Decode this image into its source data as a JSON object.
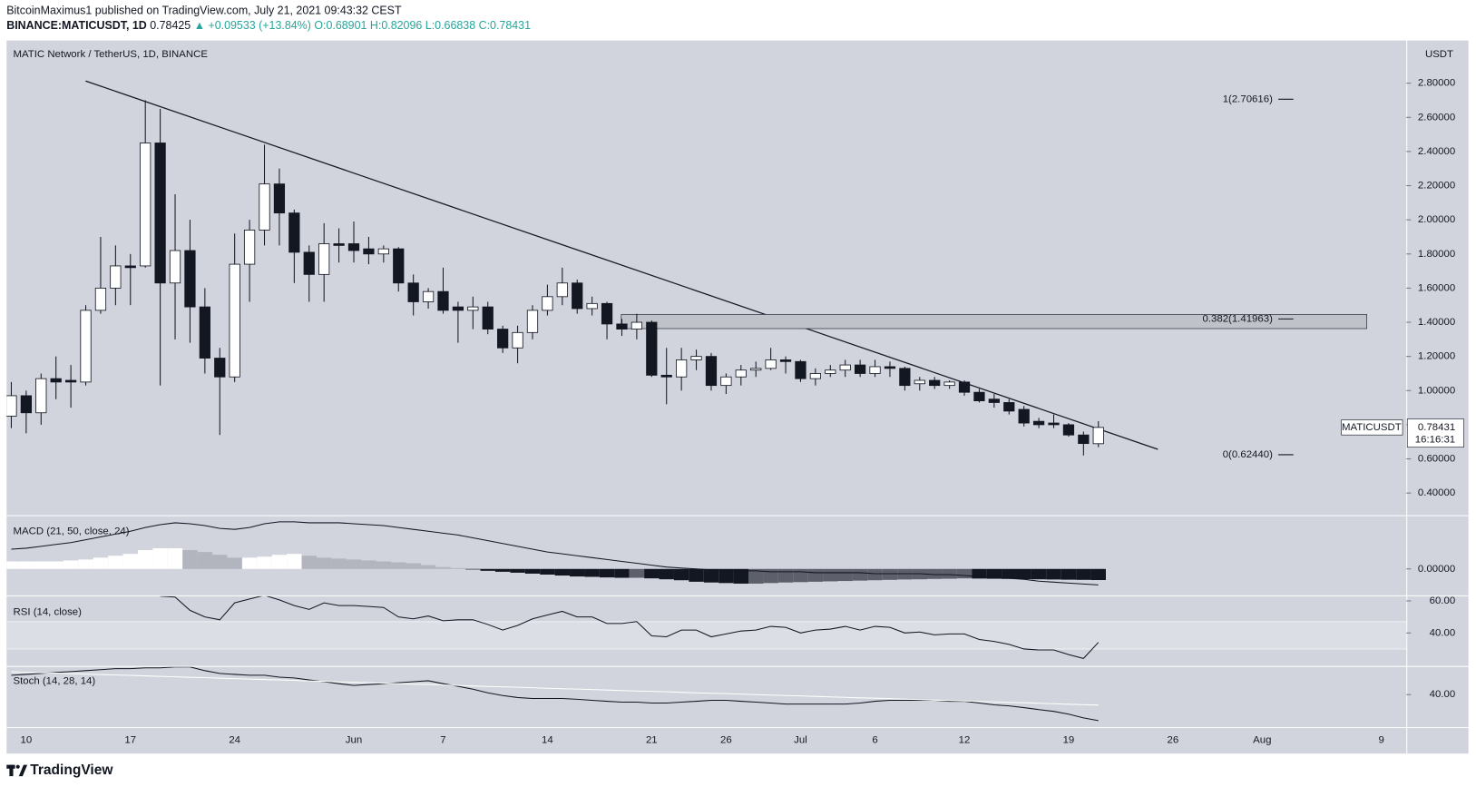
{
  "header": {
    "author_line": "BitcoinMaximus1 published on TradingView.com, July 21, 2021 09:43:32 CEST",
    "symbol": "BINANCE:MATICUSDT, 1D",
    "last": "0.78425",
    "change": "▲ +0.09533 (+13.84%)",
    "open": "O:0.68901",
    "high": "H:0.82096",
    "low": "L:0.66838",
    "close": "C:0.78431"
  },
  "chart_data": [
    {
      "type": "candlestick",
      "title": "MATIC Network / TetherUS, 1D, BINANCE",
      "y_axis_label": "USDT",
      "categories": [
        null,
        "10",
        null,
        null,
        null,
        null,
        null,
        null,
        "17",
        null,
        null,
        null,
        null,
        null,
        null,
        "24",
        null,
        null,
        null,
        null,
        null,
        null,
        null,
        "Jun",
        null,
        null,
        null,
        null,
        null,
        "7",
        null,
        null,
        null,
        null,
        null,
        null,
        "14",
        null,
        null,
        null,
        null,
        null,
        null,
        "21",
        null,
        null,
        null,
        null,
        "26",
        null,
        null,
        null,
        null,
        "Jul",
        null,
        null,
        null,
        null,
        "6",
        null,
        null,
        null,
        null,
        null,
        "12",
        null,
        null,
        null,
        null,
        null,
        null,
        "19",
        null,
        null,
        null,
        null,
        null,
        null,
        "26",
        null,
        null,
        null,
        null,
        null,
        "Aug",
        null,
        null,
        null,
        null,
        null,
        null,
        null,
        "9"
      ],
      "open": [
        0.85,
        0.97,
        0.87,
        1.07,
        1.06,
        1.05,
        1.47,
        1.6,
        1.73,
        1.73,
        2.45,
        1.63,
        1.82,
        1.49,
        1.19,
        1.08,
        1.74,
        1.94,
        2.21,
        2.04,
        1.81,
        1.68,
        1.86,
        1.86,
        1.83,
        1.8,
        1.83,
        1.63,
        1.52,
        1.58,
        1.49,
        1.47,
        1.49,
        1.36,
        1.25,
        1.34,
        1.47,
        1.55,
        1.63,
        1.48,
        1.51,
        1.39,
        1.36,
        1.4,
        1.09,
        1.08,
        1.18,
        1.2,
        1.03,
        1.08,
        1.12,
        1.13,
        1.18,
        1.17,
        1.07,
        1.1,
        1.12,
        1.15,
        1.1,
        1.14,
        1.13,
        1.04,
        1.06,
        1.03,
        1.05,
        0.99,
        0.95,
        0.93,
        0.89,
        0.82,
        0.81,
        0.8,
        0.74,
        0.68901,
        null,
        null,
        null,
        null,
        null,
        null,
        null,
        null,
        null,
        null,
        null,
        null,
        null,
        null,
        null,
        null,
        null,
        null,
        null
      ],
      "high": [
        1.05,
        1.0,
        1.1,
        1.2,
        1.15,
        1.5,
        1.9,
        1.85,
        1.8,
        2.7,
        2.65,
        2.15,
        2.0,
        1.6,
        1.25,
        1.92,
        2.0,
        2.44,
        2.3,
        2.06,
        1.85,
        1.98,
        1.95,
        1.99,
        1.9,
        1.85,
        1.84,
        1.68,
        1.6,
        1.72,
        1.52,
        1.55,
        1.52,
        1.38,
        1.38,
        1.5,
        1.62,
        1.72,
        1.65,
        1.55,
        1.52,
        1.42,
        1.45,
        1.41,
        1.25,
        1.25,
        1.24,
        1.22,
        1.1,
        1.15,
        1.17,
        1.25,
        1.2,
        1.18,
        1.13,
        1.15,
        1.18,
        1.18,
        1.18,
        1.17,
        1.14,
        1.08,
        1.08,
        1.06,
        1.06,
        1.01,
        0.98,
        0.95,
        0.91,
        0.84,
        0.86,
        0.81,
        0.76,
        0.82096,
        null,
        null,
        null,
        null,
        null,
        null,
        null,
        null,
        null,
        null,
        null,
        null,
        null,
        null,
        null,
        null,
        null,
        null,
        null
      ],
      "low": [
        0.78,
        0.75,
        0.8,
        0.95,
        0.9,
        1.03,
        1.45,
        1.5,
        1.5,
        1.72,
        1.03,
        1.3,
        1.28,
        1.1,
        0.74,
        1.05,
        1.52,
        1.85,
        1.85,
        1.63,
        1.52,
        1.52,
        1.75,
        1.75,
        1.74,
        1.75,
        1.58,
        1.44,
        1.48,
        1.45,
        1.28,
        1.36,
        1.33,
        1.22,
        1.16,
        1.3,
        1.44,
        1.5,
        1.45,
        1.44,
        1.3,
        1.32,
        1.3,
        1.08,
        0.92,
        1.0,
        1.12,
        1.0,
        0.98,
        1.03,
        1.08,
        1.12,
        1.1,
        1.05,
        1.03,
        1.08,
        1.08,
        1.08,
        1.08,
        1.08,
        1.0,
        1.0,
        1.01,
        1.01,
        0.97,
        0.93,
        0.9,
        0.86,
        0.79,
        0.78,
        0.78,
        0.73,
        0.62,
        0.66838,
        null,
        null,
        null,
        null,
        null,
        null,
        null,
        null,
        null,
        null,
        null,
        null,
        null,
        null,
        null,
        null,
        null,
        null,
        null
      ],
      "close": [
        0.97,
        0.87,
        1.07,
        1.05,
        1.05,
        1.47,
        1.6,
        1.73,
        1.72,
        2.45,
        1.63,
        1.82,
        1.49,
        1.19,
        1.08,
        1.74,
        1.94,
        2.21,
        2.04,
        1.81,
        1.68,
        1.86,
        1.85,
        1.82,
        1.8,
        1.83,
        1.63,
        1.52,
        1.58,
        1.47,
        1.47,
        1.49,
        1.36,
        1.25,
        1.34,
        1.47,
        1.55,
        1.63,
        1.48,
        1.51,
        1.39,
        1.36,
        1.4,
        1.09,
        1.08,
        1.18,
        1.2,
        1.03,
        1.08,
        1.12,
        1.13,
        1.18,
        1.17,
        1.07,
        1.1,
        1.12,
        1.15,
        1.1,
        1.14,
        1.13,
        1.03,
        1.06,
        1.03,
        1.05,
        0.99,
        0.94,
        0.93,
        0.88,
        0.81,
        0.8,
        0.8,
        0.74,
        0.69,
        0.78431,
        null,
        null,
        null,
        null,
        null,
        null,
        null,
        null,
        null,
        null,
        null,
        null,
        null,
        null,
        null,
        null,
        null,
        null,
        null
      ],
      "up_color": "#ffffff",
      "down_color": "#131722",
      "ylim": [
        0.27,
        3.05
      ],
      "yticks": [
        {
          "value": 0.4,
          "label": "0.40000"
        },
        {
          "value": 0.6,
          "label": "0.60000"
        },
        {
          "value": 0.8,
          "label": "0.80000"
        },
        {
          "value": 1.0,
          "label": "1.00000"
        },
        {
          "value": 1.2,
          "label": "1.20000"
        },
        {
          "value": 1.4,
          "label": "1.40000"
        },
        {
          "value": 1.6,
          "label": "1.60000"
        },
        {
          "value": 1.8,
          "label": "1.80000"
        },
        {
          "value": 2.0,
          "label": "2.00000"
        },
        {
          "value": 2.2,
          "label": "2.20000"
        },
        {
          "value": 2.4,
          "label": "2.40000"
        },
        {
          "value": 2.6,
          "label": "2.60000"
        },
        {
          "value": 2.8,
          "label": "2.80000"
        }
      ],
      "fib_levels": [
        {
          "value": 2.70616,
          "label": "1(2.70616)"
        },
        {
          "value": 1.41963,
          "label": "0.382(1.41963)"
        },
        {
          "value": 0.6244,
          "label": "0(0.62440)"
        }
      ],
      "resistance_zone": [
        1.363,
        1.446
      ],
      "last_price": {
        "symbol": "MATICUSDT",
        "countdown": "16:16:31"
      }
    },
    {
      "type": "macd",
      "title": "MACD (21, 50, close, 24)",
      "ylim": [
        -0.14,
        0.28
      ],
      "yticks": [
        {
          "value": 0,
          "label": "0.00000"
        }
      ],
      "histogram": [
        0.04,
        0.04,
        0.04,
        0.04,
        0.045,
        0.05,
        0.06,
        0.07,
        0.08,
        0.1,
        0.11,
        0.11,
        0.1,
        0.09,
        0.075,
        0.06,
        0.06,
        0.065,
        0.075,
        0.08,
        0.07,
        0.06,
        0.055,
        0.05,
        0.045,
        0.04,
        0.035,
        0.03,
        0.02,
        0.01,
        0.005,
        -0.003,
        -0.01,
        -0.015,
        -0.02,
        -0.025,
        -0.03,
        -0.035,
        -0.04,
        -0.042,
        -0.045,
        -0.047,
        -0.047,
        -0.05,
        -0.055,
        -0.06,
        -0.068,
        -0.072,
        -0.075,
        -0.078,
        -0.078,
        -0.075,
        -0.072,
        -0.07,
        -0.068,
        -0.066,
        -0.064,
        -0.062,
        -0.06,
        -0.058,
        -0.056,
        -0.055,
        -0.053,
        -0.052,
        -0.05,
        -0.051,
        -0.052,
        -0.053,
        -0.054,
        -0.055,
        -0.056,
        -0.057,
        -0.058,
        -0.059
      ],
      "macd": [
        0.105,
        0.11,
        0.12,
        0.13,
        0.14,
        0.155,
        0.17,
        0.185,
        0.2,
        0.22,
        0.235,
        0.245,
        0.24,
        0.23,
        0.215,
        0.21,
        0.22,
        0.24,
        0.25,
        0.25,
        0.245,
        0.245,
        0.245,
        0.24,
        0.235,
        0.23,
        0.22,
        0.21,
        0.2,
        0.19,
        0.18,
        0.165,
        0.15,
        0.135,
        0.12,
        0.105,
        0.09,
        0.08,
        0.07,
        0.06,
        0.05,
        0.04,
        0.03,
        0.02,
        0.01,
        0.005,
        0,
        -0.005,
        -0.01,
        -0.01,
        -0.01,
        -0.015,
        -0.015,
        -0.015,
        -0.02,
        -0.02,
        -0.02,
        -0.02,
        -0.025,
        -0.025,
        -0.025,
        -0.025,
        -0.03,
        -0.03,
        -0.035,
        -0.04,
        -0.045,
        -0.05,
        -0.055,
        -0.065,
        -0.07,
        -0.075,
        -0.08,
        -0.085
      ],
      "line_color": "#131722",
      "histogram_colors": {
        "rising_above": "#ffffff",
        "falling_above": "#b2b5be",
        "rising_below": "#5d606b",
        "falling_below": "#131722"
      }
    },
    {
      "type": "rsi",
      "title": "RSI (14, close)",
      "ylim": [
        19.4,
        62.9
      ],
      "yticks": [
        {
          "value": 60,
          "label": "60.00"
        },
        {
          "value": 40,
          "label": "40.00"
        }
      ],
      "values": [
        null,
        null,
        null,
        null,
        null,
        null,
        null,
        null,
        null,
        null,
        63,
        62.4,
        54.1,
        50,
        48.2,
        58.8,
        61.2,
        63.5,
        60.6,
        57.1,
        54.7,
        58.8,
        57.1,
        57.1,
        56.5,
        55.9,
        50,
        48.8,
        50.6,
        47.6,
        48.2,
        48.2,
        45.3,
        41.8,
        44.7,
        48.8,
        51.2,
        53.5,
        50,
        50,
        45.9,
        45.9,
        47.1,
        38.2,
        37.6,
        41.8,
        41.8,
        37.6,
        39.4,
        41.2,
        41.8,
        44.1,
        43.5,
        40,
        41.8,
        42.4,
        44.1,
        41.8,
        44.1,
        43.5,
        40,
        40.6,
        38.8,
        39.4,
        39.4,
        35.9,
        34.7,
        32.9,
        30,
        29.4,
        29.4,
        26.5,
        24.1,
        34.1
      ],
      "color": "#131722"
    },
    {
      "type": "stoch",
      "title": "Stoch (14, 28, 14)",
      "ylim": [
        20,
        57
      ],
      "yticks": [
        {
          "value": 40,
          "label": "40.00"
        }
      ],
      "series": [
        {
          "color": "#131722",
          "values": [
            51.9,
            52.4,
            53,
            53.6,
            54.1,
            54.7,
            55.3,
            55.9,
            55.9,
            56.4,
            56.4,
            57,
            57,
            54.7,
            53,
            52.4,
            51.9,
            51.9,
            50.7,
            50.2,
            49,
            47.9,
            46.7,
            45.6,
            46.2,
            46.7,
            47.3,
            47.9,
            48.5,
            46.7,
            45.1,
            43.3,
            41.1,
            39.4,
            38.2,
            37.6,
            37.6,
            37.6,
            37.1,
            36.5,
            35.9,
            35.4,
            35.4,
            34.8,
            34.8,
            35.4,
            35.9,
            36.5,
            36.5,
            35.9,
            35.4,
            34.8,
            34.2,
            34.2,
            34.2,
            34.2,
            34.2,
            34.8,
            35.9,
            36.5,
            36.5,
            36.5,
            36.5,
            35.9,
            35.9,
            34.8,
            33.7,
            33.1,
            32,
            30.8,
            29.7,
            28,
            25.7,
            24
          ]
        },
        {
          "color": "#ffffff",
          "values": [
            54,
            53.7,
            53.4,
            53.2,
            52.9,
            52.6,
            52.3,
            52,
            51.8,
            51.5,
            51.2,
            50.9,
            50.6,
            50.4,
            50.1,
            49.8,
            49.5,
            49.2,
            49,
            48.7,
            48.4,
            48.1,
            47.8,
            47.6,
            47.3,
            47,
            46.7,
            46.4,
            46.2,
            45.9,
            45.6,
            45.3,
            45,
            44.8,
            44.5,
            44.2,
            43.9,
            43.6,
            43.4,
            43.1,
            42.8,
            42.5,
            42.2,
            42,
            41.7,
            41.4,
            41.1,
            40.8,
            40.6,
            40.3,
            40,
            39.7,
            39.4,
            39.2,
            38.9,
            38.6,
            38.3,
            38,
            37.8,
            37.5,
            37.2,
            36.9,
            36.6,
            36.4,
            36.1,
            35.8,
            35.5,
            35.2,
            35,
            34.7,
            34.4,
            34.1,
            33.8,
            33.6
          ]
        }
      ]
    }
  ],
  "footer": {
    "brand": "TradingView"
  }
}
